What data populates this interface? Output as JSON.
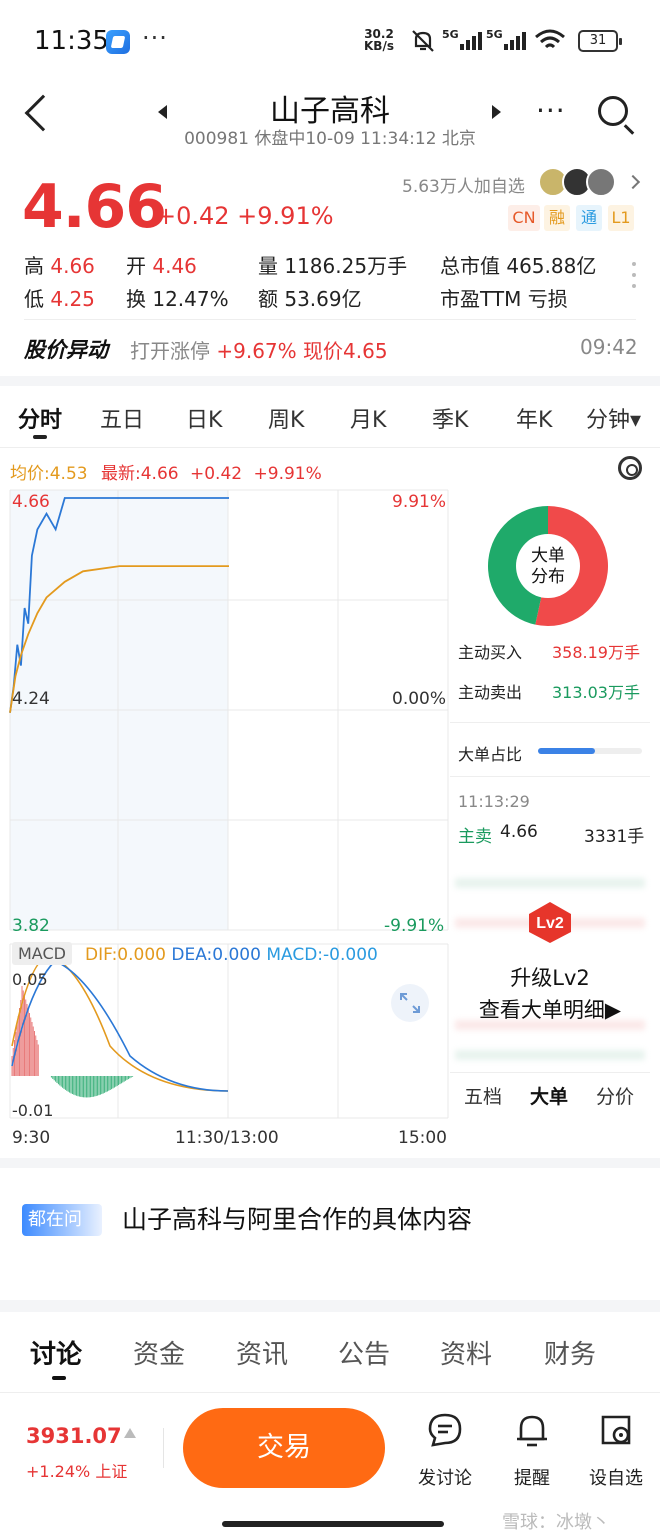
{
  "status_bar": {
    "time": "11:35",
    "dots": "···",
    "speed_value": "30.2",
    "speed_unit": "KB/s",
    "net1": "5G",
    "net2": "5G",
    "battery": "31"
  },
  "header": {
    "title": "山子高科",
    "subtitle": "000981 休盘中10-09 11:34:12 北京",
    "more": "···"
  },
  "quote": {
    "price": "4.66",
    "change": "+0.42 +9.91%",
    "follow": "5.63万人加自选",
    "tags": [
      "CN",
      "融",
      "通",
      "L1"
    ],
    "stats": [
      {
        "k": "高",
        "v": "4.66"
      },
      {
        "k": "开",
        "v": "4.46"
      },
      {
        "k": "量",
        "v": "1186.25万手"
      },
      {
        "k": "总市值",
        "v": "465.88亿"
      },
      {
        "k": "低",
        "v": "4.25"
      },
      {
        "k": "换",
        "v": "12.47%"
      },
      {
        "k": "额",
        "v": "53.69亿"
      },
      {
        "k": "市盈TTM",
        "v": "亏损"
      }
    ]
  },
  "abnormal": {
    "title": "股价异动",
    "text_prefix": "打开涨停",
    "pct": "+9.67%",
    "text_mid": "现价",
    "price": "4.65",
    "time": "09:42"
  },
  "kline_tabs": [
    "分时",
    "五日",
    "日K",
    "周K",
    "月K",
    "季K",
    "年K",
    "分钟▾"
  ],
  "legend": {
    "avg": "均价:4.53",
    "latest": "最新:4.66",
    "chg": "+0.42",
    "pct": "+9.91%"
  },
  "chart_data": {
    "type": "line",
    "title": "",
    "xlabel": "",
    "ylabel": "",
    "x_ticks": [
      "9:30",
      "11:30/13:00",
      "15:00"
    ],
    "y_left_ticks": [
      "4.66",
      "4.24",
      "3.82"
    ],
    "y_right_ticks": [
      "9.91%",
      "0.00%",
      "-9.91%"
    ],
    "ylim": [
      3.82,
      4.66
    ],
    "series": [
      {
        "name": "最新",
        "color": "#2b78d6",
        "x_min": [
          0,
          2,
          4,
          6,
          8,
          10,
          12,
          15,
          20,
          25,
          30,
          40,
          60,
          90,
          120
        ],
        "values": [
          4.25,
          4.3,
          4.38,
          4.34,
          4.45,
          4.42,
          4.55,
          4.6,
          4.63,
          4.6,
          4.66,
          4.66,
          4.66,
          4.66,
          4.66
        ]
      },
      {
        "name": "均价",
        "color": "#e39a1e",
        "x_min": [
          0,
          3,
          6,
          10,
          15,
          20,
          30,
          40,
          60,
          90,
          120
        ],
        "values": [
          4.25,
          4.32,
          4.36,
          4.4,
          4.44,
          4.47,
          4.5,
          4.52,
          4.53,
          4.53,
          4.53
        ]
      }
    ],
    "macd": {
      "label": "MACD",
      "dif_label": "DIF:0.000",
      "dea_label": "DEA:0.000",
      "macd_label": "MACD:-0.000",
      "y_ticks": [
        "0.05",
        "-0.01"
      ]
    }
  },
  "right_panel": {
    "pie_label_1": "大单",
    "pie_label_2": "分布",
    "pie_buy_fraction": 0.534,
    "buy_label": "主动买入",
    "buy_value": "358.19万手",
    "sell_label": "主动卖出",
    "sell_value": "313.03万手",
    "ratio_label": "大单占比",
    "ratio_fraction": 0.55,
    "trade_time": "11:13:29",
    "trade_side": "主卖",
    "trade_price": "4.66",
    "trade_vol": "3331手",
    "lv2_badge": "Lv2",
    "upgrade_1": "升级Lv2",
    "upgrade_2": "查看大单明细▶",
    "bottom_tabs": [
      "五档",
      "大单",
      "分价"
    ]
  },
  "question": {
    "badge": "都在问",
    "text": "山子高科与阿里合作的具体内容"
  },
  "info_tabs": [
    "讨论",
    "资金",
    "资讯",
    "公告",
    "资料",
    "财务"
  ],
  "bottom_bar": {
    "index_value": "3931.07",
    "index_change": "+1.24% 上证",
    "trade_label": "交易",
    "actions": [
      "发讨论",
      "提醒",
      "设自选"
    ]
  },
  "watermark": "雪球：冰墩丶"
}
